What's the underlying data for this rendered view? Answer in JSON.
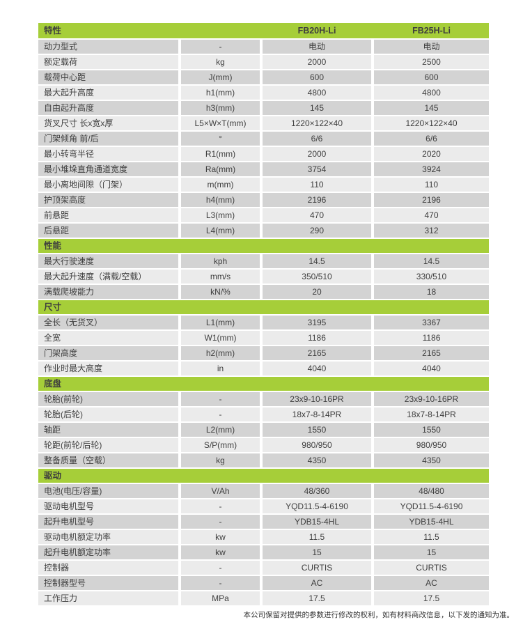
{
  "colors": {
    "green": "#a6ce39",
    "row_dark": "#d3d3d3",
    "row_light": "#ebebeb",
    "text": "#3e3e3e"
  },
  "footer": {
    "note": "本公司保留对提供的参数进行修改的权利，如有材料商改信息，以下发的通知为准。"
  },
  "table": {
    "header": {
      "feature": "特性",
      "model1": "FB20H-Li",
      "model2": "FB25H-Li"
    },
    "sections": [
      {
        "title": "",
        "rows": [
          [
            "动力型式",
            "-",
            "电动",
            "电动"
          ],
          [
            "额定载荷",
            "kg",
            "2000",
            "2500"
          ],
          [
            "载荷中心距",
            "J(mm)",
            "600",
            "600"
          ],
          [
            "最大起升高度",
            "h1(mm)",
            "4800",
            "4800"
          ],
          [
            "自由起升高度",
            "h3(mm)",
            "145",
            "145"
          ],
          [
            "货叉尺寸 长x宽x厚",
            "L5×W×T(mm)",
            "1220×122×40",
            "1220×122×40"
          ],
          [
            "门架倾角 前/后",
            "°",
            "6/6",
            "6/6"
          ],
          [
            "最小转弯半径",
            "R1(mm)",
            "2000",
            "2020"
          ],
          [
            "最小堆垛直角通道宽度",
            "Ra(mm)",
            "3754",
            "3924"
          ],
          [
            "最小离地间隙（门架）",
            "m(mm)",
            "110",
            "110"
          ],
          [
            "护顶架高度",
            "h4(mm)",
            "2196",
            "2196"
          ],
          [
            "前悬距",
            "L3(mm)",
            "470",
            "470"
          ],
          [
            "后悬距",
            "L4(mm)",
            "290",
            "312"
          ]
        ]
      },
      {
        "title": "性能",
        "rows": [
          [
            "最大行驶速度",
            "kph",
            "14.5",
            "14.5"
          ],
          [
            "最大起升速度（满载/空载）",
            "mm/s",
            "350/510",
            "330/510"
          ],
          [
            "满载爬坡能力",
            "kN/%",
            "20",
            "18"
          ]
        ]
      },
      {
        "title": "尺寸",
        "rows": [
          [
            "全长（无货叉）",
            "L1(mm)",
            "3195",
            "3367"
          ],
          [
            "全宽",
            "W1(mm)",
            "1186",
            "1186"
          ],
          [
            "门架高度",
            "h2(mm)",
            "2165",
            "2165"
          ],
          [
            "作业时最大高度",
            "in",
            "4040",
            "4040"
          ]
        ]
      },
      {
        "title": "底盘",
        "rows": [
          [
            "轮胎(前轮)",
            "-",
            "23x9-10-16PR",
            "23x9-10-16PR"
          ],
          [
            "轮胎(后轮)",
            "-",
            "18x7-8-14PR",
            "18x7-8-14PR"
          ],
          [
            "轴距",
            "L2(mm)",
            "1550",
            "1550"
          ],
          [
            "轮距(前轮/后轮)",
            "S/P(mm)",
            "980/950",
            "980/950"
          ],
          [
            "整备质量（空载）",
            "kg",
            "4350",
            "4350"
          ]
        ]
      },
      {
        "title": "驱动",
        "rows": [
          [
            "电池(电压/容量)",
            "V/Ah",
            "48/360",
            "48/480"
          ],
          [
            "驱动电机型号",
            "-",
            "YQD11.5-4-6190",
            "YQD11.5-4-6190"
          ],
          [
            "起升电机型号",
            "-",
            "YDB15-4HL",
            "YDB15-4HL"
          ],
          [
            "驱动电机额定功率",
            "kw",
            "11.5",
            "11.5"
          ],
          [
            "起升电机额定功率",
            "kw",
            "15",
            "15"
          ],
          [
            "控制器",
            "-",
            "CURTIS",
            "CURTIS"
          ],
          [
            "控制器型号",
            "-",
            "AC",
            "AC"
          ],
          [
            "工作压力",
            "MPa",
            "17.5",
            "17.5"
          ]
        ]
      }
    ]
  }
}
